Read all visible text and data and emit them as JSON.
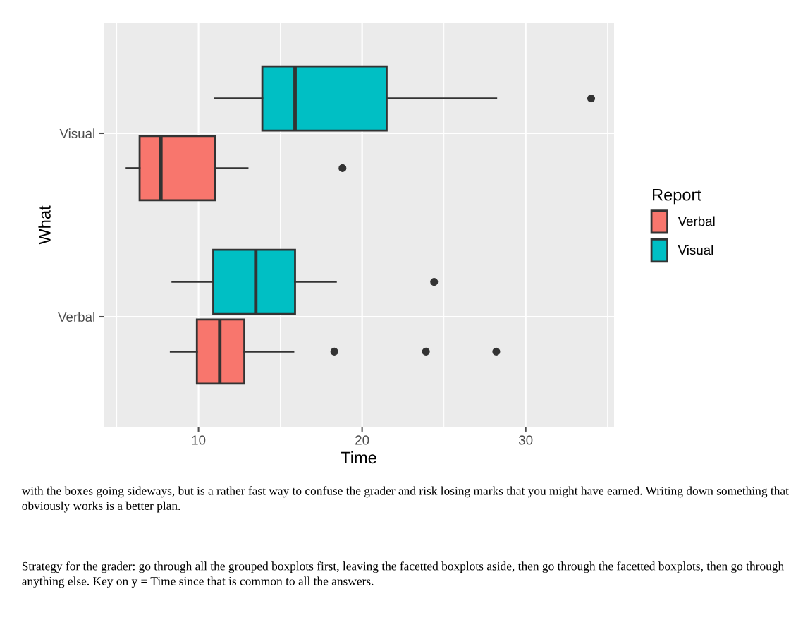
{
  "chart_data": {
    "type": "box",
    "orientation": "horizontal",
    "xlabel": "Time",
    "ylabel": "What",
    "legend_title": "Report",
    "categories": [
      "Visual",
      "Verbal"
    ],
    "series": [
      {
        "name": "Verbal",
        "color": "#f8766d",
        "boxes": [
          {
            "low": 5.6,
            "q1": 6.4,
            "median": 7.7,
            "q3": 11.0,
            "high": 13.0,
            "outliers": [
              18.8
            ]
          },
          {
            "low": 8.3,
            "q1": 9.9,
            "median": 11.3,
            "q3": 12.8,
            "high": 15.8,
            "outliers": [
              18.3,
              23.9,
              28.2
            ]
          }
        ]
      },
      {
        "name": "Visual",
        "color": "#00bfc4",
        "boxes": [
          {
            "low": 11.0,
            "q1": 13.9,
            "median": 15.9,
            "q3": 21.5,
            "high": 28.2,
            "outliers": [
              34.0
            ]
          },
          {
            "low": 8.4,
            "q1": 10.9,
            "median": 13.5,
            "q3": 15.9,
            "high": 18.4,
            "outliers": [
              24.4
            ]
          }
        ]
      }
    ],
    "xlim": [
      4.2,
      35.4
    ],
    "xticks": [
      10,
      20,
      30
    ],
    "grid": true,
    "legend": "right",
    "annotations": [
      "with the boxes going sideways, but is a rather fast way to confuse the grader and risk losing marks that you might have earned. Writing down something that obviously works is a better plan.",
      "Strategy for the grader: go through all the grouped boxplots first, leaving the facetted boxplots aside, then go through the facetted boxplots, then go through anything else. Key on y = Time since that is common to all the answers."
    ]
  }
}
